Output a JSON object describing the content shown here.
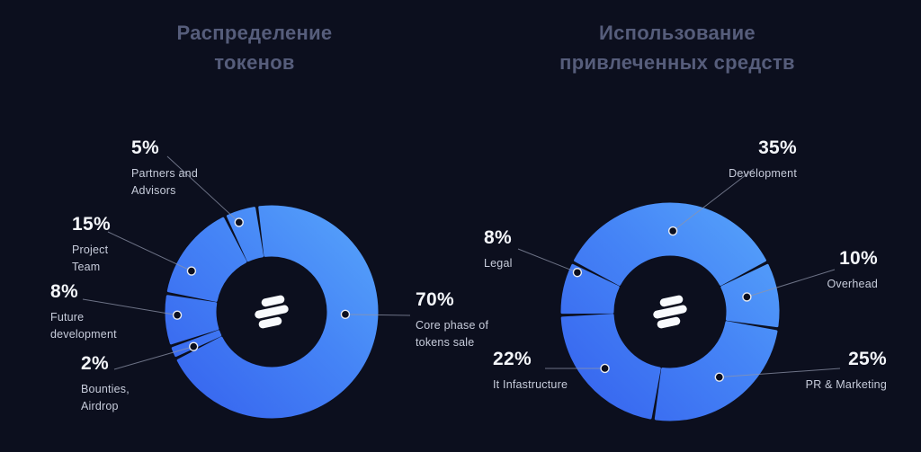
{
  "page": {
    "background": "#0c0f1e"
  },
  "colors": {
    "slice_gradient": [
      "#3561ee",
      "#4584f6",
      "#58a6fb"
    ],
    "title": "#565d7b",
    "pct_text": "#f4f6fa",
    "caption_text": "#c7ccdb",
    "callout_line": "#8d94a9",
    "dot_stroke": "#e9ecf3",
    "logo": "#f8fafd"
  },
  "chart_data": [
    {
      "type": "pie",
      "variant": "donut",
      "title": "Распределение токенов",
      "unit": "%",
      "legend_position": "around",
      "slices": [
        {
          "label": "Core phase of tokens sale",
          "value": 70,
          "pct_label": "70%"
        },
        {
          "label": "Bounties, Airdrop",
          "value": 2,
          "pct_label": "2%"
        },
        {
          "label": "Future development",
          "value": 8,
          "pct_label": "8%"
        },
        {
          "label": "Project Team",
          "value": 15,
          "pct_label": "15%"
        },
        {
          "label": "Partners and Advisors",
          "value": 5,
          "pct_label": "5%"
        }
      ]
    },
    {
      "type": "pie",
      "variant": "donut",
      "title": "Использование привлеченных средств",
      "unit": "%",
      "legend_position": "around",
      "slices": [
        {
          "label": "Development",
          "value": 35,
          "pct_label": "35%"
        },
        {
          "label": "Overhead",
          "value": 10,
          "pct_label": "10%"
        },
        {
          "label": "PR & Marketing",
          "value": 25,
          "pct_label": "25%"
        },
        {
          "label": "It Infastructure",
          "value": 22,
          "pct_label": "22%"
        },
        {
          "label": "Legal",
          "value": 8,
          "pct_label": "8%"
        }
      ]
    }
  ]
}
